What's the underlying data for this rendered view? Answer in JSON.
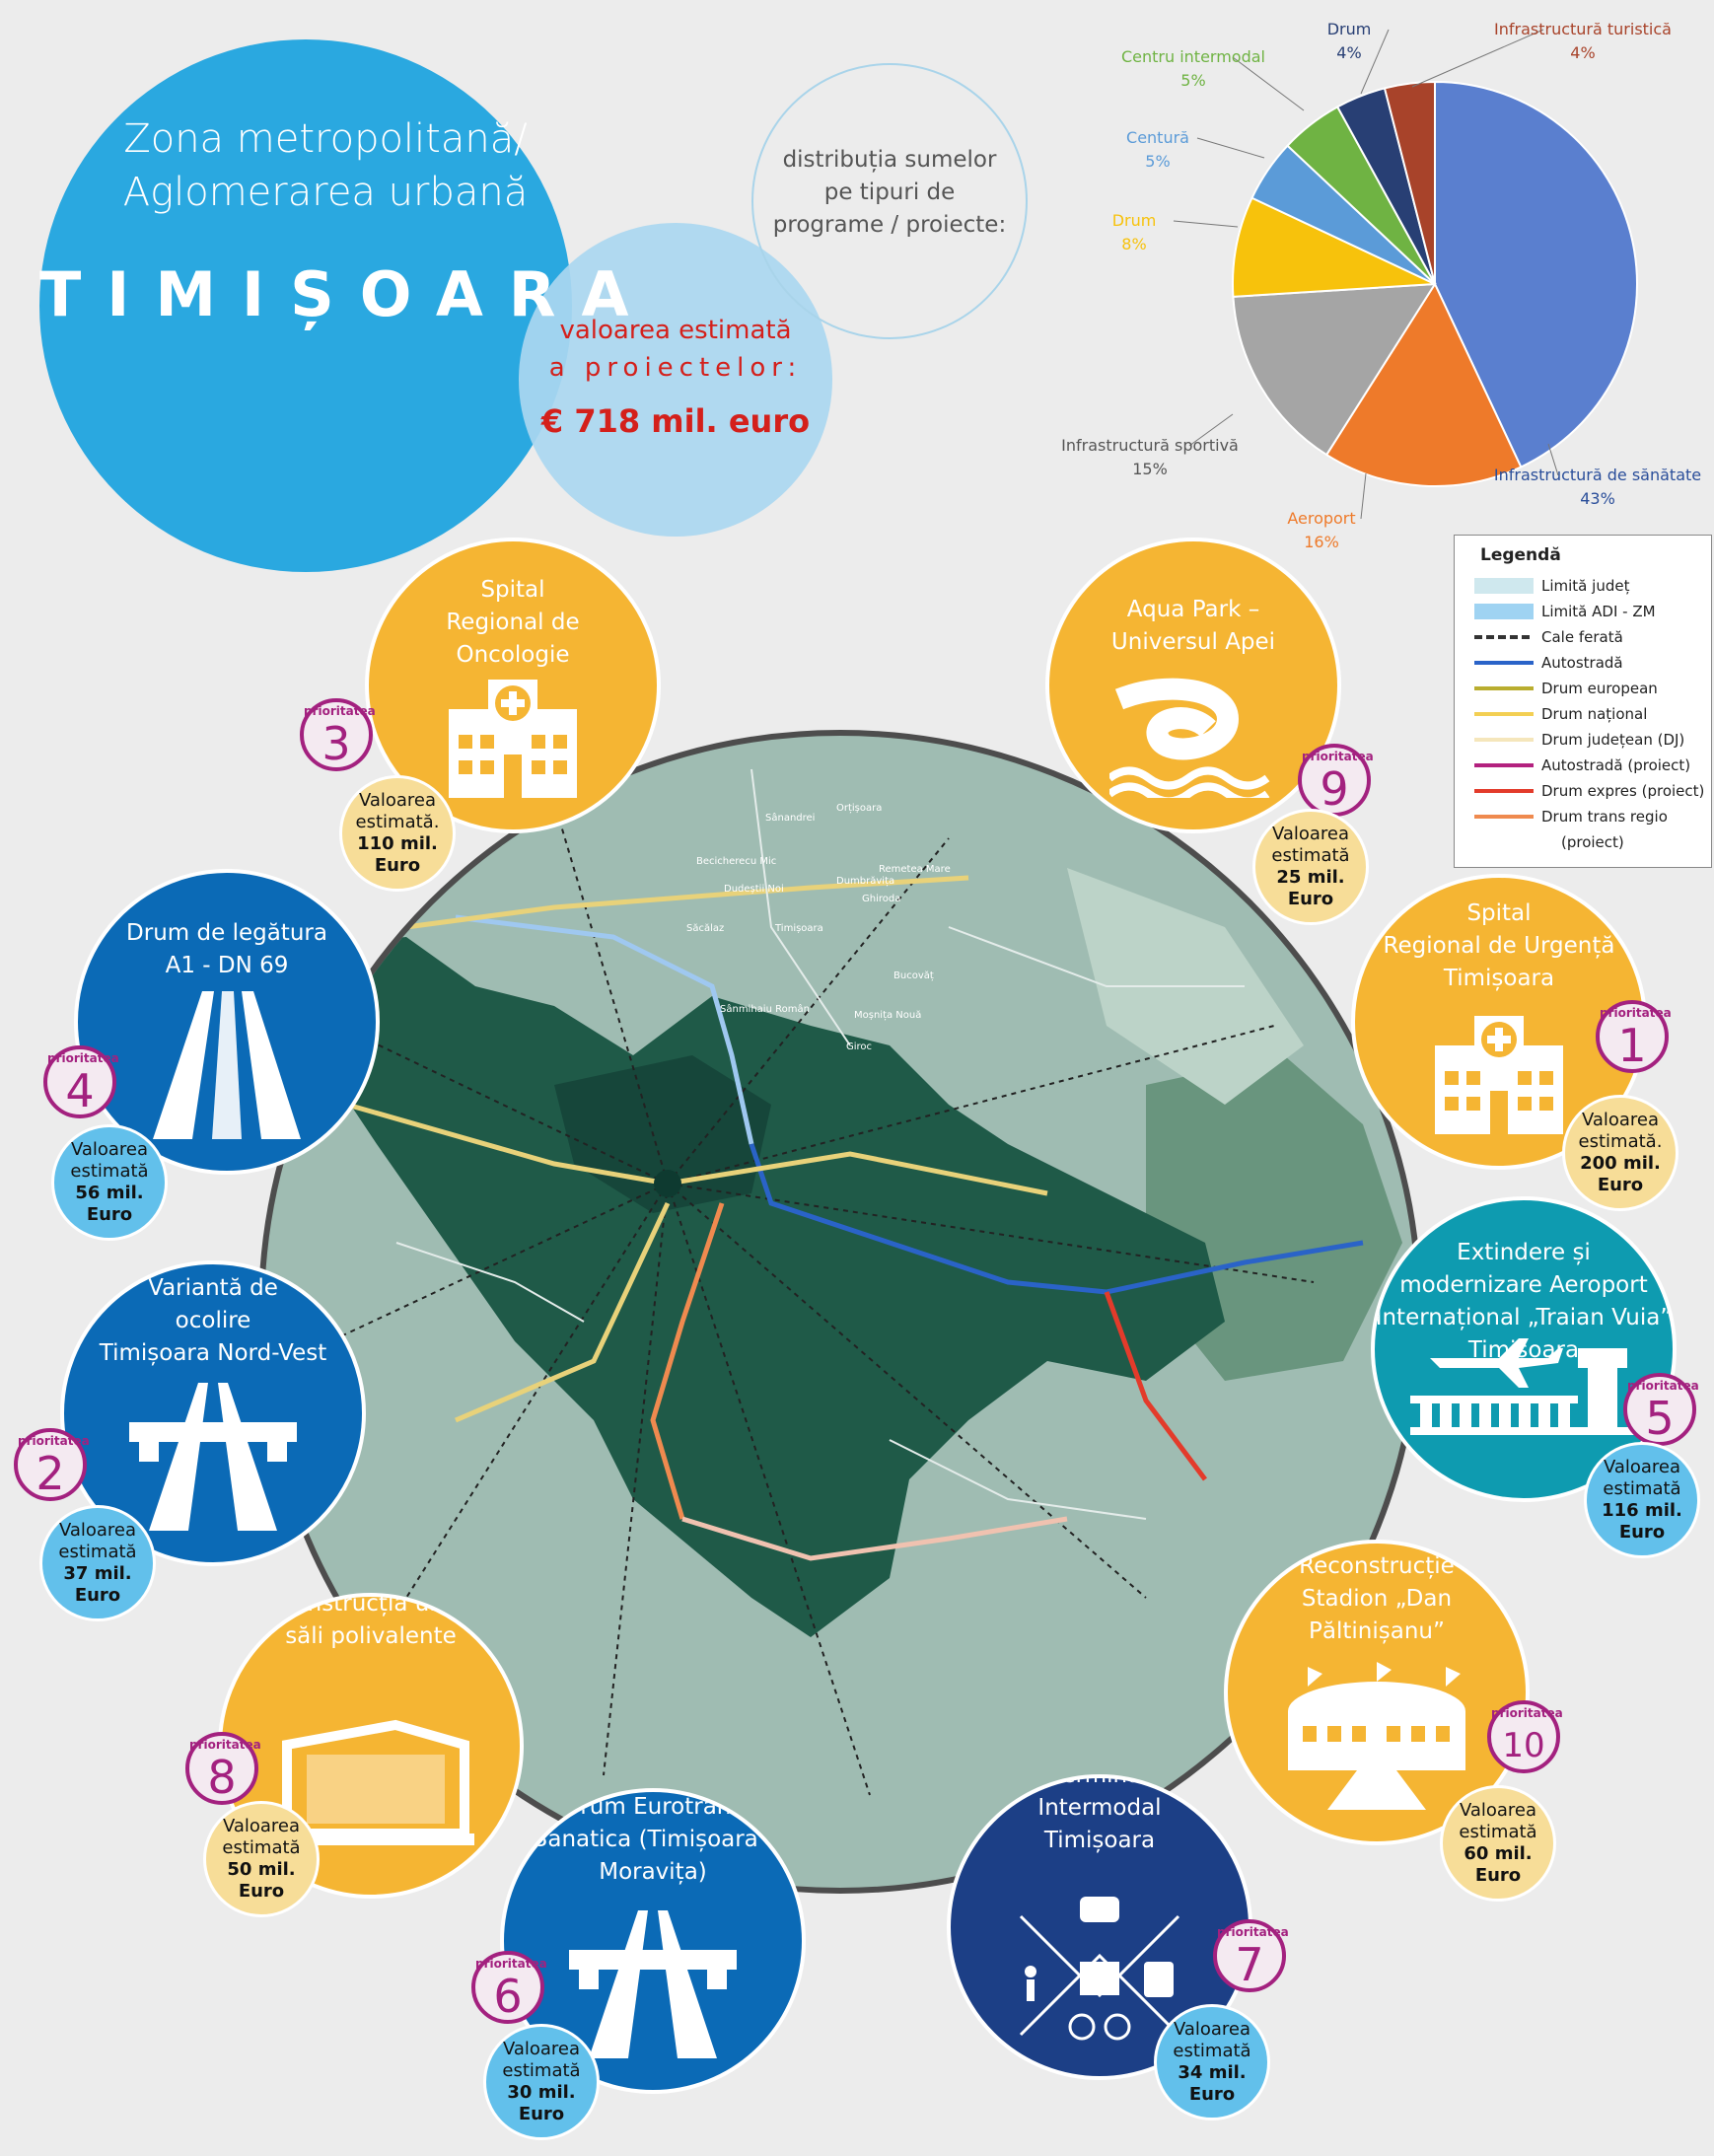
{
  "header": {
    "subtitle_line1": "Zona metropolitană/",
    "subtitle_line2": "Aglomerarea urbană",
    "city": "TIMIȘOARA",
    "value_label_line1": "valoarea estimată",
    "value_label_line2": "a proiectelor:",
    "value_amount": "€ 718 mil. euro",
    "distribution_line1": "distribuția sumelor",
    "distribution_line2": "pe tipuri de",
    "distribution_line3": "programe / proiecte:"
  },
  "chart_data": {
    "type": "pie",
    "slices": [
      {
        "name": "Infrastructură de sănătate",
        "value": 43,
        "label": "43%",
        "color": "#5a7fcf"
      },
      {
        "name": "Aeroport",
        "value": 16,
        "label": "16%",
        "color": "#ee7a2a"
      },
      {
        "name": "Infrastructură sportivă",
        "value": 15,
        "label": "15%",
        "color": "#a5a5a5"
      },
      {
        "name": "Drum",
        "value": 8,
        "label": "8%",
        "color": "#f7c20c"
      },
      {
        "name": "Centură",
        "value": 5,
        "label": "5%",
        "color": "#5b9bd8"
      },
      {
        "name": "Centru intermodal",
        "value": 5,
        "label": "5%",
        "color": "#6fb343"
      },
      {
        "name": "Drum",
        "value": 4,
        "label": "4%",
        "color": "#283f74"
      },
      {
        "name": "Infrastructură turistică",
        "value": 4,
        "label": "4%",
        "color": "#a8432a"
      }
    ]
  },
  "legend": {
    "title": "Legendă",
    "items": [
      {
        "label": "Limită județ",
        "color": "#cfe8ee"
      },
      {
        "label": "Limită ADI - ZM",
        "color": "#9fd3f2"
      },
      {
        "label": "Cale ferată",
        "color": "#333333"
      },
      {
        "label": "Autostradă",
        "color": "#2a63c8"
      },
      {
        "label": "Drum european",
        "color": "#b9ad2f"
      },
      {
        "label": "Drum național",
        "color": "#f3cf53"
      },
      {
        "label": "Drum județean (DJ)",
        "color": "#f5e6bb"
      },
      {
        "label": "Autostradă (proiect)",
        "color": "#b3217f"
      },
      {
        "label": "Drum expres (proiect)",
        "color": "#e33b2b"
      },
      {
        "label": "Drum trans regio",
        "color": "#ef8a4f"
      },
      {
        "label": "(proiect)",
        "color": ""
      }
    ]
  },
  "map": {
    "places": [
      "Ortișoara",
      "Sânandrei",
      "Becicherecu Mic",
      "Dudeștii Noi",
      "Săcălaz",
      "Timișoara",
      "Dumbrăvița",
      "Ghiroda",
      "Remetea Mare",
      "Bucovăț",
      "Moșnița Nouă",
      "Giroc",
      "Sânmihaiu Român",
      "Orțișoara"
    ]
  },
  "priority_label": "prioritatea",
  "projects": [
    {
      "title_lines": [
        "Spital",
        "Regional de",
        "Oncologie"
      ],
      "priority": "3",
      "value_lines": [
        "Valoarea",
        "estimată.",
        "110 mil.",
        "Euro"
      ]
    },
    {
      "title_lines": [
        "Aqua Park –",
        "Universul Apei"
      ],
      "priority": "9",
      "value_lines": [
        "Valoarea",
        "estimată",
        "25 mil.",
        "Euro"
      ]
    },
    {
      "title_lines": [
        "Drum de legătura",
        "A1 - DN 69"
      ],
      "priority": "4",
      "value_lines": [
        "Valoarea",
        "estimată",
        "56 mil.",
        "Euro"
      ]
    },
    {
      "title_lines": [
        "Spital",
        "Regional de Urgență",
        "Timișoara"
      ],
      "priority": "1",
      "value_lines": [
        "Valoarea",
        "estimată.",
        "200 mil.",
        "Euro"
      ]
    },
    {
      "title_lines": [
        "Extindere și",
        "modernizare Aeroport",
        "Internațional „Traian Vuia”",
        "Timișoara"
      ],
      "priority": "5",
      "value_lines": [
        "Valoarea",
        "estimată",
        "116 mil.",
        "Euro"
      ]
    },
    {
      "title_lines": [
        "Variantă de",
        "ocolire",
        "Timișoara Nord-Vest"
      ],
      "priority": "2",
      "value_lines": [
        "Valoarea",
        "estimată",
        "37 mil.",
        "Euro"
      ]
    },
    {
      "title_lines": [
        "Construcția unei",
        "săli polivalente"
      ],
      "priority": "8",
      "value_lines": [
        "Valoarea",
        "estimată",
        "50 mil.",
        "Euro"
      ]
    },
    {
      "title_lines": [
        "Reconstrucție",
        "Stadion „Dan",
        "Păltinișanu”"
      ],
      "priority": "10",
      "value_lines": [
        "Valoarea",
        "estimată",
        "60 mil.",
        "Euro"
      ]
    },
    {
      "title_lines": [
        "Drum Eurotrans",
        "Banatica (Timișoara -",
        "Moravița)"
      ],
      "priority": "6",
      "value_lines": [
        "Valoarea",
        "estimată",
        "30 mil.",
        "Euro"
      ]
    },
    {
      "title_lines": [
        "Terminal",
        "Intermodal",
        "Timișoara"
      ],
      "priority": "7",
      "value_lines": [
        "Valoarea",
        "estimată",
        "34 mil.",
        "Euro"
      ]
    }
  ]
}
